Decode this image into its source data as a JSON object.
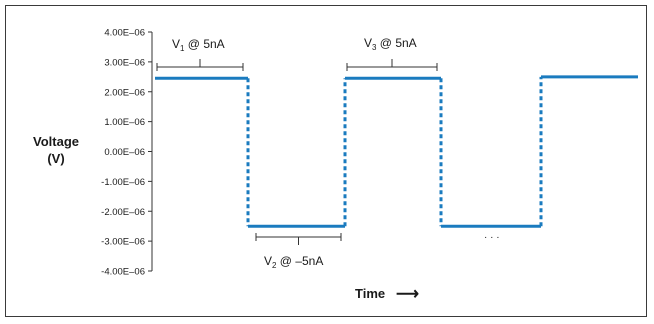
{
  "chart_data": {
    "type": "line",
    "title": "",
    "ylabel_line1": "Voltage",
    "ylabel_line2": "(V)",
    "xlabel": "Time",
    "xlabel_arrow": "⟶",
    "ylim": [
      -4e-06,
      4e-06
    ],
    "yticks": [
      "4.00E–06",
      "3.00E–06",
      "2.00E–06",
      "1.00E–06",
      "0.00E–06",
      "-1.00E–06",
      "-2.00E–06",
      "-3.00E–06",
      "-4.00E–06"
    ],
    "ytick_values": [
      4e-06,
      3e-06,
      2e-06,
      1e-06,
      0,
      -1e-06,
      -2e-06,
      -3e-06,
      -4e-06
    ],
    "grid": false,
    "series": [
      {
        "color": "#1a7bbf",
        "segments": [
          {
            "t0": 0,
            "t1": 1,
            "v": 2.45e-06
          },
          {
            "t0": 1,
            "t1": 2,
            "v": -2.5e-06
          },
          {
            "t0": 2,
            "t1": 3,
            "v": 2.45e-06
          },
          {
            "t0": 3,
            "t1": 4,
            "v": -2.5e-06
          },
          {
            "t0": 4,
            "t1": 5,
            "v": 2.5e-06
          }
        ]
      }
    ],
    "annotations": [
      {
        "id": "v1",
        "main": "V",
        "sub": "1",
        "rest": " @ 5nA"
      },
      {
        "id": "v2",
        "main": "V",
        "sub": "2",
        "rest": " @ –5nA"
      },
      {
        "id": "v3",
        "main": "V",
        "sub": "3",
        "rest": " @ 5nA"
      }
    ],
    "ellipsis": "· · ·"
  }
}
